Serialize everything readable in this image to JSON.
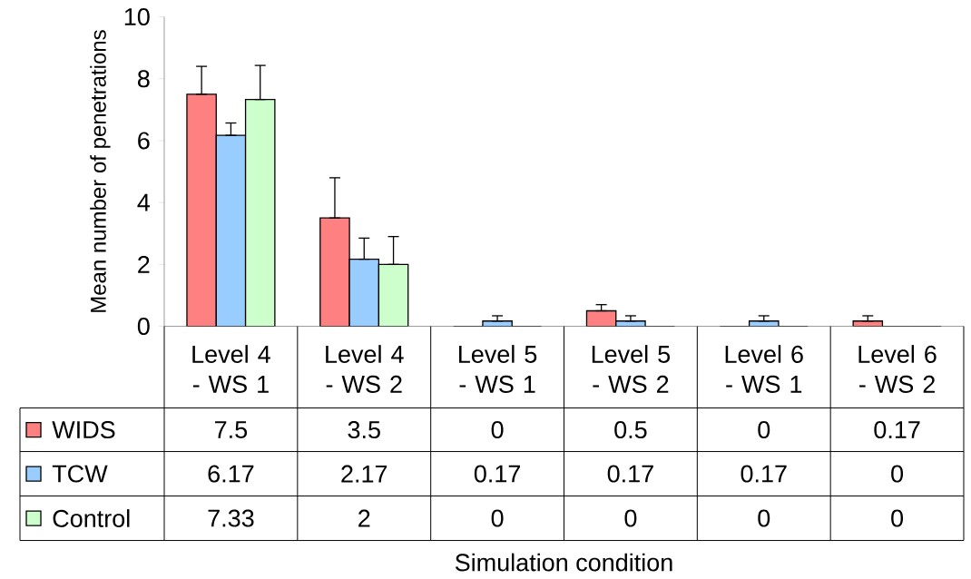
{
  "chart_data": {
    "type": "bar",
    "ylabel": "Mean number of penetrations",
    "categories": [
      "Level 4 - WS 1",
      "Level 4 - WS 2",
      "Level 5 - WS 1",
      "Level 5 - WS 2",
      "Level 6 - WS 1",
      "Level 6 - WS 2"
    ],
    "series": [
      {
        "name": "WIDS",
        "color": "#ff8080",
        "values": [
          7.5,
          3.5,
          0,
          0.5,
          0,
          0.17
        ],
        "errors": [
          [
            7.5,
            8.4
          ],
          [
            3.5,
            4.8
          ],
          null,
          [
            0.5,
            0.7
          ],
          null,
          [
            0.17,
            0.34
          ]
        ]
      },
      {
        "name": "TCW",
        "color": "#99ccff",
        "values": [
          6.17,
          2.17,
          0.17,
          0.17,
          0.17,
          0
        ],
        "errors": [
          [
            6.17,
            6.57
          ],
          [
            2.17,
            2.85
          ],
          [
            0.17,
            0.34
          ],
          [
            0.17,
            0.34
          ],
          [
            0.17,
            0.34
          ],
          null
        ]
      },
      {
        "name": "Control",
        "color": "#ccffcc",
        "values": [
          7.33,
          2,
          0,
          0,
          0,
          0
        ],
        "errors": [
          [
            7.33,
            8.43
          ],
          [
            2,
            2.9
          ],
          null,
          null,
          null,
          null
        ]
      }
    ],
    "ylim": [
      0,
      10
    ],
    "yticks": [
      0,
      2,
      4,
      6,
      8,
      10
    ],
    "grid": false,
    "legend": "bottom left",
    "data_labels": true,
    "annotations": [
      "Simulation condition"
    ]
  }
}
